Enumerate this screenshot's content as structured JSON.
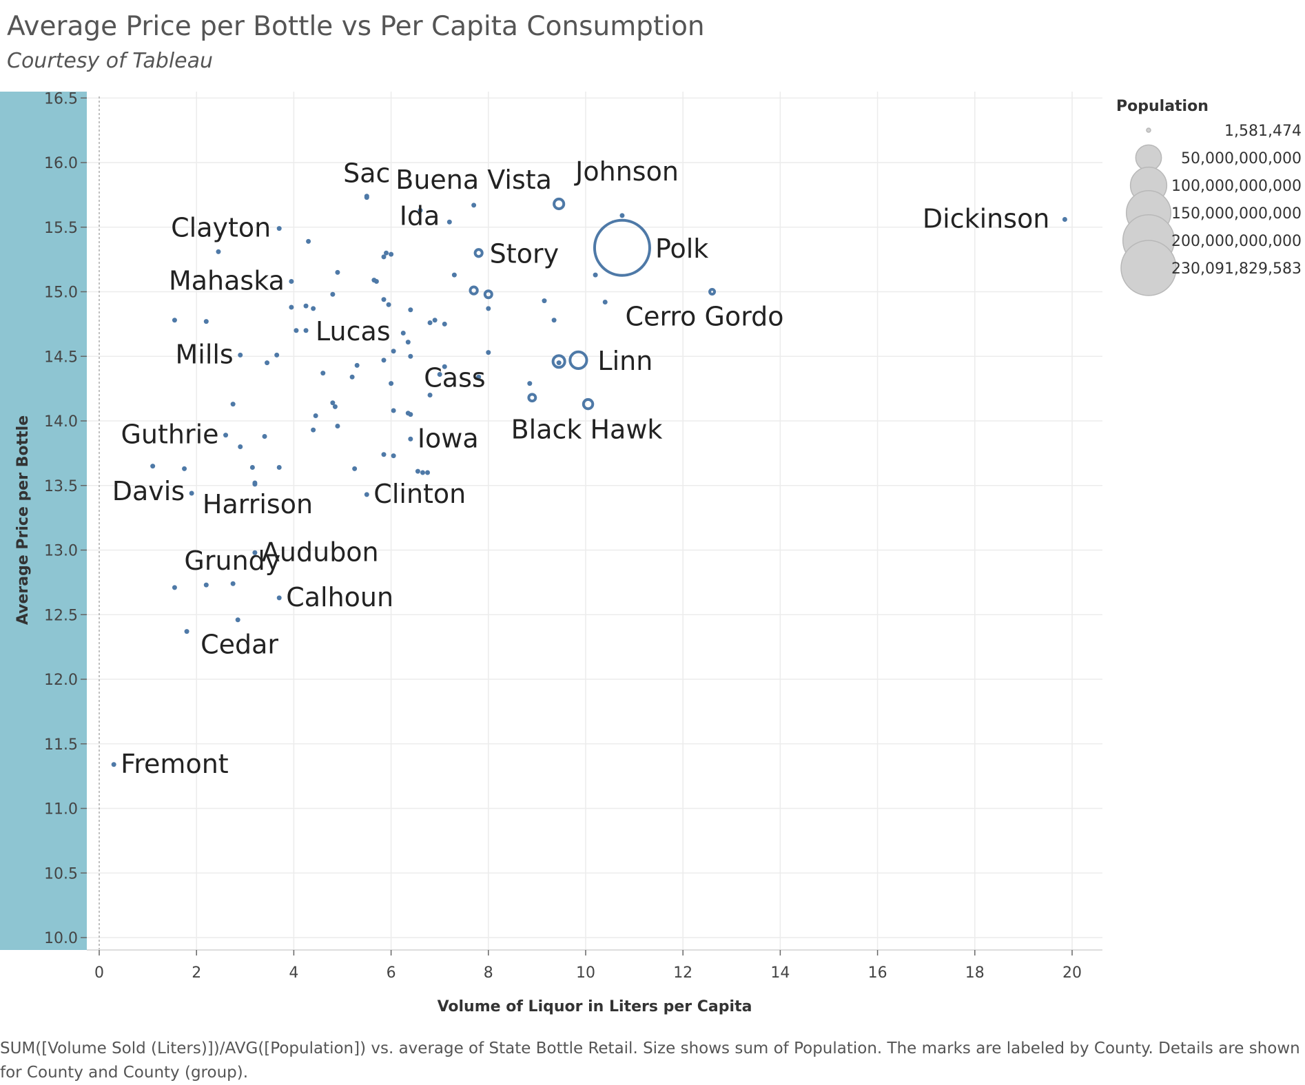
{
  "page": {
    "title": "Average Price per Bottle vs Per Capita Consumption",
    "subtitle": "Courtesy of Tableau",
    "caption": "SUM([Volume Sold (Liters)])/AVG([Population]) vs. average of State Bottle Retail.  Size shows sum of Population.  The marks are labeled by County.  Details are shown for County and County (group)."
  },
  "colors": {
    "mark": "#4e79a7",
    "band": "#8ec5d2",
    "grid": "#ececec",
    "legend_circle": "#d0d0d0"
  },
  "chart_data": {
    "type": "scatter",
    "title": "Average Price per Bottle vs Per Capita Consumption",
    "subtitle": "Courtesy of Tableau",
    "xlabel": "Volume of Liquor in Liters per Capita",
    "ylabel": "Average Price per Bottle",
    "xlim": [
      0,
      20.7
    ],
    "ylim": [
      10.0,
      16.7
    ],
    "xticks": [
      "0",
      "2",
      "4",
      "6",
      "8",
      "10",
      "12",
      "14",
      "16",
      "18",
      "20"
    ],
    "yticks": [
      "10.0",
      "10.5",
      "11.0",
      "11.5",
      "12.0",
      "12.5",
      "13.0",
      "13.5",
      "14.0",
      "14.5",
      "15.0",
      "15.5",
      "16.0",
      "16.5"
    ],
    "grid": true,
    "size_encoding": "Population",
    "legend": {
      "title": "Population",
      "placement": "right",
      "entries": [
        "1,581,474",
        "50,000,000,000",
        "100,000,000,000",
        "150,000,000,000",
        "200,000,000,000",
        "230,091,829,583"
      ]
    },
    "labeled_points": [
      {
        "name": "Buena Vista",
        "x": 7.7,
        "y": 15.67
      },
      {
        "name": "Johnson",
        "x": 9.45,
        "y": 15.68
      },
      {
        "name": "Dickinson",
        "x": 19.85,
        "y": 15.56
      },
      {
        "name": "Clayton",
        "x": 3.7,
        "y": 15.49
      },
      {
        "name": "Sac",
        "x": 5.5,
        "y": 15.73
      },
      {
        "name": "Ida",
        "x": 7.2,
        "y": 15.54
      },
      {
        "name": "Story",
        "x": 7.8,
        "y": 15.3
      },
      {
        "name": "Polk",
        "x": 10.75,
        "y": 15.34
      },
      {
        "name": "Mahaska",
        "x": 3.95,
        "y": 15.08
      },
      {
        "name": "Cerro Gordo",
        "x": 12.6,
        "y": 15.0
      },
      {
        "name": "Lucas",
        "x": 4.25,
        "y": 14.7
      },
      {
        "name": "Cass",
        "x": 7.8,
        "y": 14.34
      },
      {
        "name": "Mills",
        "x": 2.9,
        "y": 14.51
      },
      {
        "name": "Linn",
        "x": 9.85,
        "y": 14.47
      },
      {
        "name": "Black Hawk",
        "x": 10.05,
        "y": 14.13
      },
      {
        "name": "Guthrie",
        "x": 2.6,
        "y": 13.89
      },
      {
        "name": "Iowa",
        "x": 6.4,
        "y": 13.86
      },
      {
        "name": "Davis",
        "x": 1.9,
        "y": 13.44
      },
      {
        "name": "Harrison",
        "x": 3.2,
        "y": 13.52
      },
      {
        "name": "Clinton",
        "x": 5.5,
        "y": 13.43
      },
      {
        "name": "Audubon",
        "x": 3.2,
        "y": 12.98
      },
      {
        "name": "Grundy",
        "x": 1.55,
        "y": 12.71
      },
      {
        "name": "Calhoun",
        "x": 3.7,
        "y": 12.63
      },
      {
        "name": "Cedar",
        "x": 1.8,
        "y": 12.37
      },
      {
        "name": "Fremont",
        "x": 0.3,
        "y": 11.34
      }
    ],
    "unlabeled_points": [
      [
        5.5,
        15.74
      ],
      [
        6.6,
        15.63
      ],
      [
        10.75,
        15.59
      ],
      [
        4.3,
        15.39
      ],
      [
        2.45,
        15.31
      ],
      [
        5.85,
        15.27
      ],
      [
        6.0,
        15.29
      ],
      [
        5.9,
        15.3
      ],
      [
        4.9,
        15.15
      ],
      [
        7.3,
        15.13
      ],
      [
        10.2,
        15.13
      ],
      [
        5.7,
        15.08
      ],
      [
        5.65,
        15.09
      ],
      [
        4.8,
        14.98
      ],
      [
        5.85,
        14.94
      ],
      [
        5.95,
        14.9
      ],
      [
        9.15,
        14.93
      ],
      [
        10.4,
        14.92
      ],
      [
        3.95,
        14.88
      ],
      [
        4.25,
        14.89
      ],
      [
        4.4,
        14.87
      ],
      [
        6.4,
        14.86
      ],
      [
        8.0,
        14.87
      ],
      [
        1.55,
        14.78
      ],
      [
        2.2,
        14.77
      ],
      [
        6.8,
        14.76
      ],
      [
        6.9,
        14.78
      ],
      [
        7.1,
        14.75
      ],
      [
        9.35,
        14.78
      ],
      [
        4.05,
        14.7
      ],
      [
        6.25,
        14.68
      ],
      [
        6.35,
        14.61
      ],
      [
        6.05,
        14.54
      ],
      [
        8.0,
        14.53
      ],
      [
        3.65,
        14.51
      ],
      [
        6.4,
        14.5
      ],
      [
        5.85,
        14.47
      ],
      [
        3.45,
        14.45
      ],
      [
        5.3,
        14.43
      ],
      [
        7.1,
        14.42
      ],
      [
        4.6,
        14.37
      ],
      [
        7.0,
        14.36
      ],
      [
        5.2,
        14.34
      ],
      [
        6.0,
        14.29
      ],
      [
        8.85,
        14.29
      ],
      [
        6.8,
        14.2
      ],
      [
        4.8,
        14.14
      ],
      [
        2.75,
        14.13
      ],
      [
        4.85,
        14.11
      ],
      [
        6.05,
        14.08
      ],
      [
        6.35,
        14.06
      ],
      [
        6.4,
        14.05
      ],
      [
        4.45,
        14.04
      ],
      [
        4.9,
        13.96
      ],
      [
        4.4,
        13.93
      ],
      [
        3.4,
        13.88
      ],
      [
        2.9,
        13.8
      ],
      [
        5.85,
        13.74
      ],
      [
        6.05,
        13.73
      ],
      [
        1.1,
        13.65
      ],
      [
        1.75,
        13.63
      ],
      [
        3.15,
        13.64
      ],
      [
        3.7,
        13.64
      ],
      [
        5.25,
        13.63
      ],
      [
        6.55,
        13.61
      ],
      [
        6.65,
        13.6
      ],
      [
        6.75,
        13.6
      ],
      [
        3.2,
        13.51
      ],
      [
        2.75,
        12.74
      ],
      [
        2.2,
        12.73
      ],
      [
        2.85,
        12.46
      ],
      [
        9.45,
        14.45
      ],
      [
        8.9,
        14.18
      ],
      [
        7.7,
        15.01
      ],
      [
        8.0,
        14.98
      ]
    ],
    "bubbles": [
      {
        "x": 10.75,
        "y": 15.34,
        "population": 230091829583
      },
      {
        "x": 9.85,
        "y": 14.47,
        "population": 21000000000
      },
      {
        "x": 9.45,
        "y": 14.46,
        "population": 10500000000
      },
      {
        "x": 9.45,
        "y": 15.68,
        "population": 7200000000
      },
      {
        "x": 10.05,
        "y": 14.13,
        "population": 6500000000
      },
      {
        "x": 7.7,
        "y": 15.01,
        "population": 3800000000
      },
      {
        "x": 8.0,
        "y": 14.98,
        "population": 3600000000
      },
      {
        "x": 7.8,
        "y": 15.3,
        "population": 3700000000
      },
      {
        "x": 8.9,
        "y": 14.18,
        "population": 3500000000
      },
      {
        "x": 12.6,
        "y": 15.0,
        "population": 1500000000
      }
    ]
  }
}
